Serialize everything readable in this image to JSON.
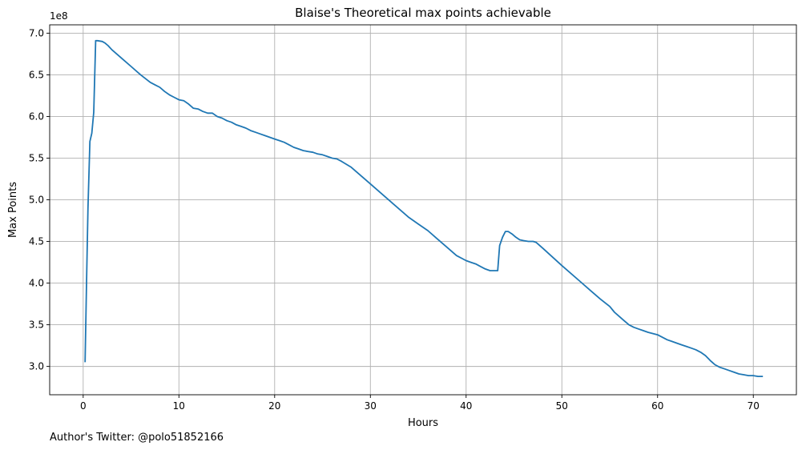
{
  "chart_data": {
    "type": "line",
    "title": "Blaise's Theoretical max points achievable",
    "xlabel": "Hours",
    "ylabel": "Max Points",
    "y_multiplier_label": "1e8",
    "xlim": [
      -3.5,
      74.5
    ],
    "ylim": [
      2.66,
      7.1
    ],
    "x_ticks": [
      0,
      10,
      20,
      30,
      40,
      50,
      60,
      70
    ],
    "x_tick_labels": [
      "0",
      "10",
      "20",
      "30",
      "40",
      "50",
      "60",
      "70"
    ],
    "y_ticks": [
      3.0,
      3.5,
      4.0,
      4.5,
      5.0,
      5.5,
      6.0,
      6.5,
      7.0
    ],
    "y_tick_labels": [
      "3.0",
      "3.5",
      "4.0",
      "4.5",
      "5.0",
      "5.5",
      "6.0",
      "6.5",
      "7.0"
    ],
    "grid": true,
    "series": [
      {
        "color": "#1f77b4",
        "x": [
          0.2,
          0.35,
          0.5,
          0.7,
          0.9,
          1.1,
          1.3,
          1.5,
          2.0,
          2.3,
          2.6,
          3.0,
          4.0,
          5.0,
          6.0,
          7.0,
          7.5,
          8.0,
          8.5,
          9.0,
          9.5,
          10.0,
          10.5,
          11.0,
          11.5,
          12.0,
          12.5,
          13.0,
          13.5,
          14.0,
          14.5,
          15.0,
          15.5,
          16.0,
          16.5,
          17.0,
          17.5,
          18.0,
          18.5,
          19.0,
          19.5,
          20.0,
          20.5,
          21.0,
          21.5,
          22.0,
          22.5,
          23.0,
          23.5,
          24.0,
          24.5,
          25.0,
          25.5,
          26.0,
          26.5,
          27.0,
          28.0,
          30.0,
          32.0,
          34.0,
          35.0,
          36.0,
          37.0,
          38.0,
          39.0,
          40.0,
          40.5,
          41.0,
          41.5,
          42.0,
          42.5,
          43.0,
          43.3,
          43.5,
          43.8,
          44.1,
          44.4,
          44.8,
          45.2,
          45.6,
          46.0,
          46.5,
          47.0,
          47.3,
          48.0,
          50.0,
          52.0,
          53.0,
          54.0,
          55.0,
          55.5,
          56.0,
          56.5,
          57.0,
          57.5,
          58.0,
          58.5,
          59.0,
          60.0,
          60.5,
          61.0,
          61.5,
          62.0,
          62.5,
          63.0,
          63.5,
          64.0,
          64.5,
          65.0,
          65.5,
          66.0,
          66.5,
          67.0,
          67.5,
          68.0,
          68.5,
          69.0,
          69.5,
          70.0,
          70.5,
          71.0
        ],
        "y": [
          3.05,
          4.0,
          4.9,
          5.7,
          5.8,
          6.05,
          6.91,
          6.91,
          6.9,
          6.88,
          6.85,
          6.8,
          6.7,
          6.6,
          6.5,
          6.41,
          6.38,
          6.35,
          6.3,
          6.26,
          6.23,
          6.2,
          6.19,
          6.15,
          6.1,
          6.09,
          6.06,
          6.04,
          6.04,
          6.0,
          5.98,
          5.95,
          5.93,
          5.9,
          5.88,
          5.86,
          5.83,
          5.81,
          5.79,
          5.77,
          5.75,
          5.73,
          5.71,
          5.69,
          5.66,
          5.63,
          5.61,
          5.59,
          5.58,
          5.57,
          5.55,
          5.54,
          5.52,
          5.5,
          5.49,
          5.46,
          5.39,
          5.19,
          4.99,
          4.79,
          4.71,
          4.63,
          4.53,
          4.43,
          4.33,
          4.27,
          4.25,
          4.23,
          4.2,
          4.17,
          4.15,
          4.15,
          4.15,
          4.45,
          4.55,
          4.62,
          4.62,
          4.59,
          4.55,
          4.52,
          4.51,
          4.5,
          4.5,
          4.49,
          4.42,
          4.21,
          4.01,
          3.91,
          3.81,
          3.72,
          3.65,
          3.6,
          3.55,
          3.5,
          3.47,
          3.45,
          3.43,
          3.41,
          3.38,
          3.35,
          3.32,
          3.3,
          3.28,
          3.26,
          3.24,
          3.22,
          3.2,
          3.17,
          3.13,
          3.07,
          3.02,
          2.99,
          2.97,
          2.95,
          2.93,
          2.91,
          2.9,
          2.89,
          2.89,
          2.88,
          2.88
        ]
      }
    ]
  },
  "footer": {
    "author_note": "Author's Twitter: @polo51852166"
  }
}
